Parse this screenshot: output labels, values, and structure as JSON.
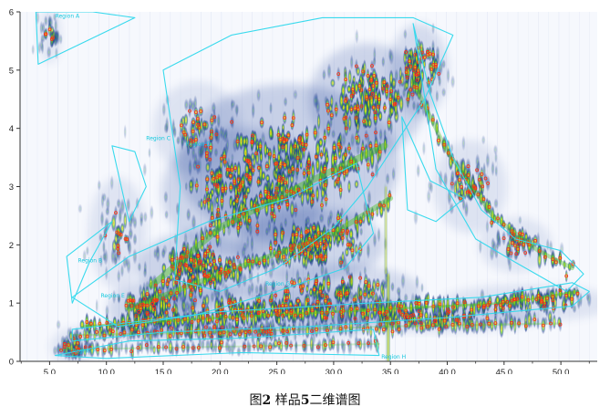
{
  "caption": {
    "prefix": "图",
    "number": "2",
    "sample_word": "样品",
    "sample_number": "5",
    "rest": "二维谱图"
  },
  "colors": {
    "background": "#f6f8fd",
    "blob_dark": "#0c1f6e",
    "blob_mid": "#2c7a2a",
    "blob_green": "#4ec21a",
    "blob_yellow": "#e8ee12",
    "blob_orange": "#f08010",
    "peak_marker": "#ff2a1a",
    "region_outline": "#2fd8ec"
  },
  "chart_data": {
    "type": "heatmap",
    "title": "",
    "xlabel": "",
    "ylabel": "",
    "xlim": [
      2.4,
      53.2
    ],
    "ylim": [
      0,
      6
    ],
    "x_ticks": [
      "5.0",
      "10.0",
      "15.0",
      "20.0",
      "25.0",
      "30.0",
      "35.0",
      "40.0",
      "45.0",
      "50.0"
    ],
    "x_tick_values": [
      5,
      10,
      15,
      20,
      25,
      30,
      35,
      40,
      45,
      50
    ],
    "y_ticks": [
      "0",
      "1",
      "2",
      "3",
      "4",
      "5",
      "6"
    ],
    "y_tick_values": [
      0,
      1,
      2,
      3,
      4,
      5,
      6
    ],
    "grid": false,
    "legend": "none",
    "intensity_regions": [
      {
        "x": 26.0,
        "y": 3.4,
        "sx": 7.5,
        "sy": 0.85,
        "level": 0.95
      },
      {
        "x": 33.0,
        "y": 4.5,
        "sx": 4.0,
        "sy": 0.6,
        "level": 0.85
      },
      {
        "x": 22.0,
        "y": 2.9,
        "sx": 5.5,
        "sy": 0.7,
        "level": 0.8
      },
      {
        "x": 18.0,
        "y": 1.6,
        "sx": 4.0,
        "sy": 0.4,
        "level": 0.85
      },
      {
        "x": 28.0,
        "y": 2.0,
        "sx": 5.0,
        "sy": 0.4,
        "level": 0.8
      },
      {
        "x": 30.0,
        "y": 1.2,
        "sx": 6.0,
        "sy": 0.3,
        "level": 0.7
      },
      {
        "x": 24.0,
        "y": 0.9,
        "sx": 9.0,
        "sy": 0.25,
        "level": 0.75
      },
      {
        "x": 38.0,
        "y": 0.75,
        "sx": 8.0,
        "sy": 0.15,
        "level": 0.7
      },
      {
        "x": 14.0,
        "y": 0.9,
        "sx": 3.0,
        "sy": 0.3,
        "level": 0.75
      },
      {
        "x": 37.5,
        "y": 5.0,
        "sx": 2.0,
        "sy": 0.5,
        "level": 0.7
      },
      {
        "x": 42.0,
        "y": 3.0,
        "sx": 2.5,
        "sy": 0.5,
        "level": 0.5
      },
      {
        "x": 46.0,
        "y": 2.0,
        "sx": 2.5,
        "sy": 0.3,
        "level": 0.45
      },
      {
        "x": 11.0,
        "y": 2.2,
        "sx": 2.0,
        "sy": 0.6,
        "level": 0.45
      },
      {
        "x": 18.0,
        "y": 4.0,
        "sx": 3.0,
        "sy": 0.5,
        "level": 0.5
      },
      {
        "x": 47.0,
        "y": 1.0,
        "sx": 6.0,
        "sy": 0.2,
        "level": 0.5
      },
      {
        "x": 20.0,
        "y": 0.5,
        "sx": 10.0,
        "sy": 0.15,
        "level": 0.45
      },
      {
        "x": 5.0,
        "y": 5.6,
        "sx": 0.8,
        "sy": 0.3,
        "level": 0.45
      },
      {
        "x": 7.0,
        "y": 0.25,
        "sx": 1.5,
        "sy": 0.2,
        "level": 0.45
      }
    ],
    "region_polygons": [
      [
        [
          3.8,
          6.0
        ],
        [
          8.8,
          6.0
        ],
        [
          12.5,
          5.9
        ],
        [
          4.0,
          5.1
        ]
      ],
      [
        [
          6.5,
          1.8
        ],
        [
          10.5,
          2.4
        ],
        [
          8.5,
          1.7
        ],
        [
          7.0,
          1.0
        ]
      ],
      [
        [
          15.0,
          5.0
        ],
        [
          21.0,
          5.6
        ],
        [
          29.0,
          5.9
        ],
        [
          37.0,
          5.9
        ],
        [
          40.5,
          5.6
        ],
        [
          38.0,
          4.5
        ],
        [
          35.0,
          3.6
        ],
        [
          33.0,
          3.0
        ],
        [
          30.0,
          2.3
        ],
        [
          25.0,
          1.6
        ],
        [
          20.0,
          1.2
        ],
        [
          16.0,
          1.4
        ],
        [
          16.5,
          3.0
        ]
      ],
      [
        [
          37.0,
          5.8
        ],
        [
          38.5,
          4.6
        ],
        [
          40.5,
          3.5
        ],
        [
          43.0,
          2.6
        ],
        [
          46.0,
          2.1
        ],
        [
          50.0,
          1.9
        ],
        [
          52.0,
          1.5
        ],
        [
          50.5,
          1.2
        ],
        [
          46.0,
          1.7
        ],
        [
          42.5,
          2.1
        ],
        [
          39.0,
          3.3
        ]
      ],
      [
        [
          7.0,
          1.1
        ],
        [
          12.0,
          1.8
        ],
        [
          19.0,
          2.4
        ],
        [
          26.0,
          2.8
        ],
        [
          32.0,
          3.4
        ],
        [
          33.5,
          2.2
        ],
        [
          31.0,
          1.6
        ],
        [
          25.0,
          1.2
        ],
        [
          18.0,
          0.8
        ],
        [
          11.0,
          0.6
        ]
      ],
      [
        [
          36.0,
          4.2
        ],
        [
          38.5,
          3.1
        ],
        [
          41.5,
          2.8
        ],
        [
          39.0,
          2.4
        ],
        [
          36.5,
          2.6
        ]
      ],
      [
        [
          7.0,
          0.55
        ],
        [
          20.0,
          0.85
        ],
        [
          33.0,
          1.0
        ],
        [
          43.0,
          1.1
        ],
        [
          51.0,
          1.35
        ],
        [
          52.5,
          1.2
        ],
        [
          51.0,
          0.95
        ],
        [
          40.0,
          0.75
        ],
        [
          28.0,
          0.6
        ],
        [
          15.0,
          0.5
        ],
        [
          7.0,
          0.35
        ]
      ],
      [
        [
          5.5,
          0.1
        ],
        [
          12.0,
          0.35
        ],
        [
          22.0,
          0.4
        ],
        [
          33.5,
          0.55
        ],
        [
          34.0,
          0.1
        ],
        [
          22.0,
          0.15
        ],
        [
          10.0,
          0.05
        ]
      ],
      [
        [
          10.5,
          3.7
        ],
        [
          12.5,
          3.6
        ],
        [
          13.5,
          3.0
        ],
        [
          12.0,
          2.4
        ]
      ]
    ],
    "ridges": [
      {
        "points": [
          [
            14.0,
            1.3
          ],
          [
            20.0,
            2.3
          ],
          [
            28.0,
            3.1
          ],
          [
            34.5,
            3.7
          ]
        ],
        "width": 0.22,
        "level": 0.8
      },
      {
        "points": [
          [
            12.0,
            0.9
          ],
          [
            20.0,
            1.5
          ],
          [
            30.0,
            2.2
          ],
          [
            35.0,
            2.8
          ]
        ],
        "width": 0.18,
        "level": 0.75
      },
      {
        "points": [
          [
            37.0,
            4.8
          ],
          [
            40.0,
            3.6
          ],
          [
            44.0,
            2.5
          ],
          [
            48.0,
            1.9
          ],
          [
            51.0,
            1.6
          ]
        ],
        "width": 0.14,
        "level": 0.65
      },
      {
        "points": [
          [
            8.0,
            0.6
          ],
          [
            20.0,
            0.75
          ],
          [
            35.0,
            0.9
          ],
          [
            45.0,
            1.0
          ],
          [
            51.5,
            1.2
          ]
        ],
        "width": 0.08,
        "level": 0.8
      },
      {
        "points": [
          [
            7.0,
            0.45
          ],
          [
            20.0,
            0.5
          ],
          [
            35.0,
            0.6
          ],
          [
            50.0,
            0.65
          ]
        ],
        "width": 0.07,
        "level": 0.45
      },
      {
        "points": [
          [
            6.0,
            0.2
          ],
          [
            20.0,
            0.25
          ],
          [
            34.0,
            0.3
          ]
        ],
        "width": 0.06,
        "level": 0.4
      }
    ],
    "vertical_streaks": [
      {
        "x": 34.8,
        "y0": 0.0,
        "y1": 1.5,
        "width": 0.25,
        "level": 0.75
      },
      {
        "x": 34.6,
        "y0": 1.5,
        "y1": 3.0,
        "width": 0.2,
        "level": 0.5
      }
    ],
    "region_labels": [
      {
        "text": "Region A",
        "x": 5.5,
        "y": 5.9
      },
      {
        "text": "Region B",
        "x": 7.5,
        "y": 1.7
      },
      {
        "text": "Region C",
        "x": 13.5,
        "y": 3.8
      },
      {
        "text": "Region D",
        "x": 17.0,
        "y": 3.7
      },
      {
        "text": "Region E",
        "x": 9.5,
        "y": 1.1
      },
      {
        "text": "Region F",
        "x": 7.0,
        "y": 0.15
      },
      {
        "text": "Region G",
        "x": 24.0,
        "y": 1.3
      },
      {
        "text": "Region H",
        "x": 34.2,
        "y": 0.05
      }
    ]
  }
}
